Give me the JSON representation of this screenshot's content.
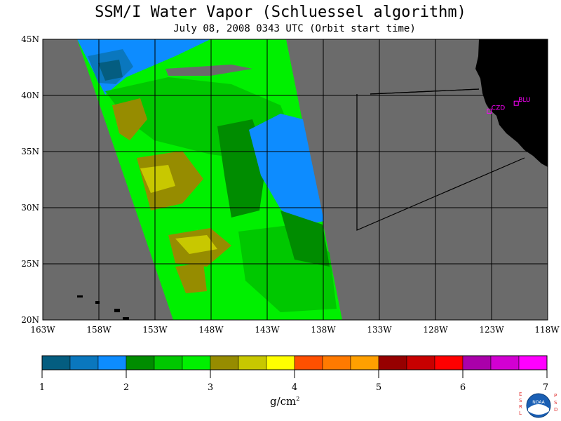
{
  "title": "SSM/I Water Vapor (Schluessel algorithm)",
  "subtitle": "July 08, 2008  0343 UTC  (Orbit start time)",
  "latitude_labels": [
    "45N",
    "40N",
    "35N",
    "30N",
    "25N",
    "20N"
  ],
  "longitude_labels": [
    "163W",
    "158W",
    "153W",
    "148W",
    "143W",
    "138W",
    "133W",
    "128W",
    "123W",
    "118W"
  ],
  "stations": [
    {
      "label": "CZD",
      "lat": 38.6,
      "lon": -123.2
    },
    {
      "label": "BLU",
      "lat": 39.3,
      "lon": -120.8
    }
  ],
  "colorbar": {
    "ticks": [
      "1",
      "2",
      "3",
      "4",
      "5",
      "6",
      "7"
    ],
    "units": "g/cm",
    "units_exponent": "2",
    "colors": [
      "#045d80",
      "#0a77be",
      "#0d8cff",
      "#008c00",
      "#00c800",
      "#00f000",
      "#968c00",
      "#c8c800",
      "#ffff00",
      "#ff5000",
      "#ff7a00",
      "#ffa000",
      "#960000",
      "#c80000",
      "#ff0000",
      "#aa00aa",
      "#d200d2",
      "#ff00ff"
    ]
  },
  "logo": {
    "left_letters": "ESRL",
    "right_letters": "PSD",
    "center": "NOAA"
  },
  "colors": {
    "no_data": "#6b6b6b",
    "land": "#000000",
    "grid": "#000000"
  },
  "extent": {
    "lon_min": -163,
    "lon_max": -118,
    "lat_min": 20,
    "lat_max": 45
  }
}
